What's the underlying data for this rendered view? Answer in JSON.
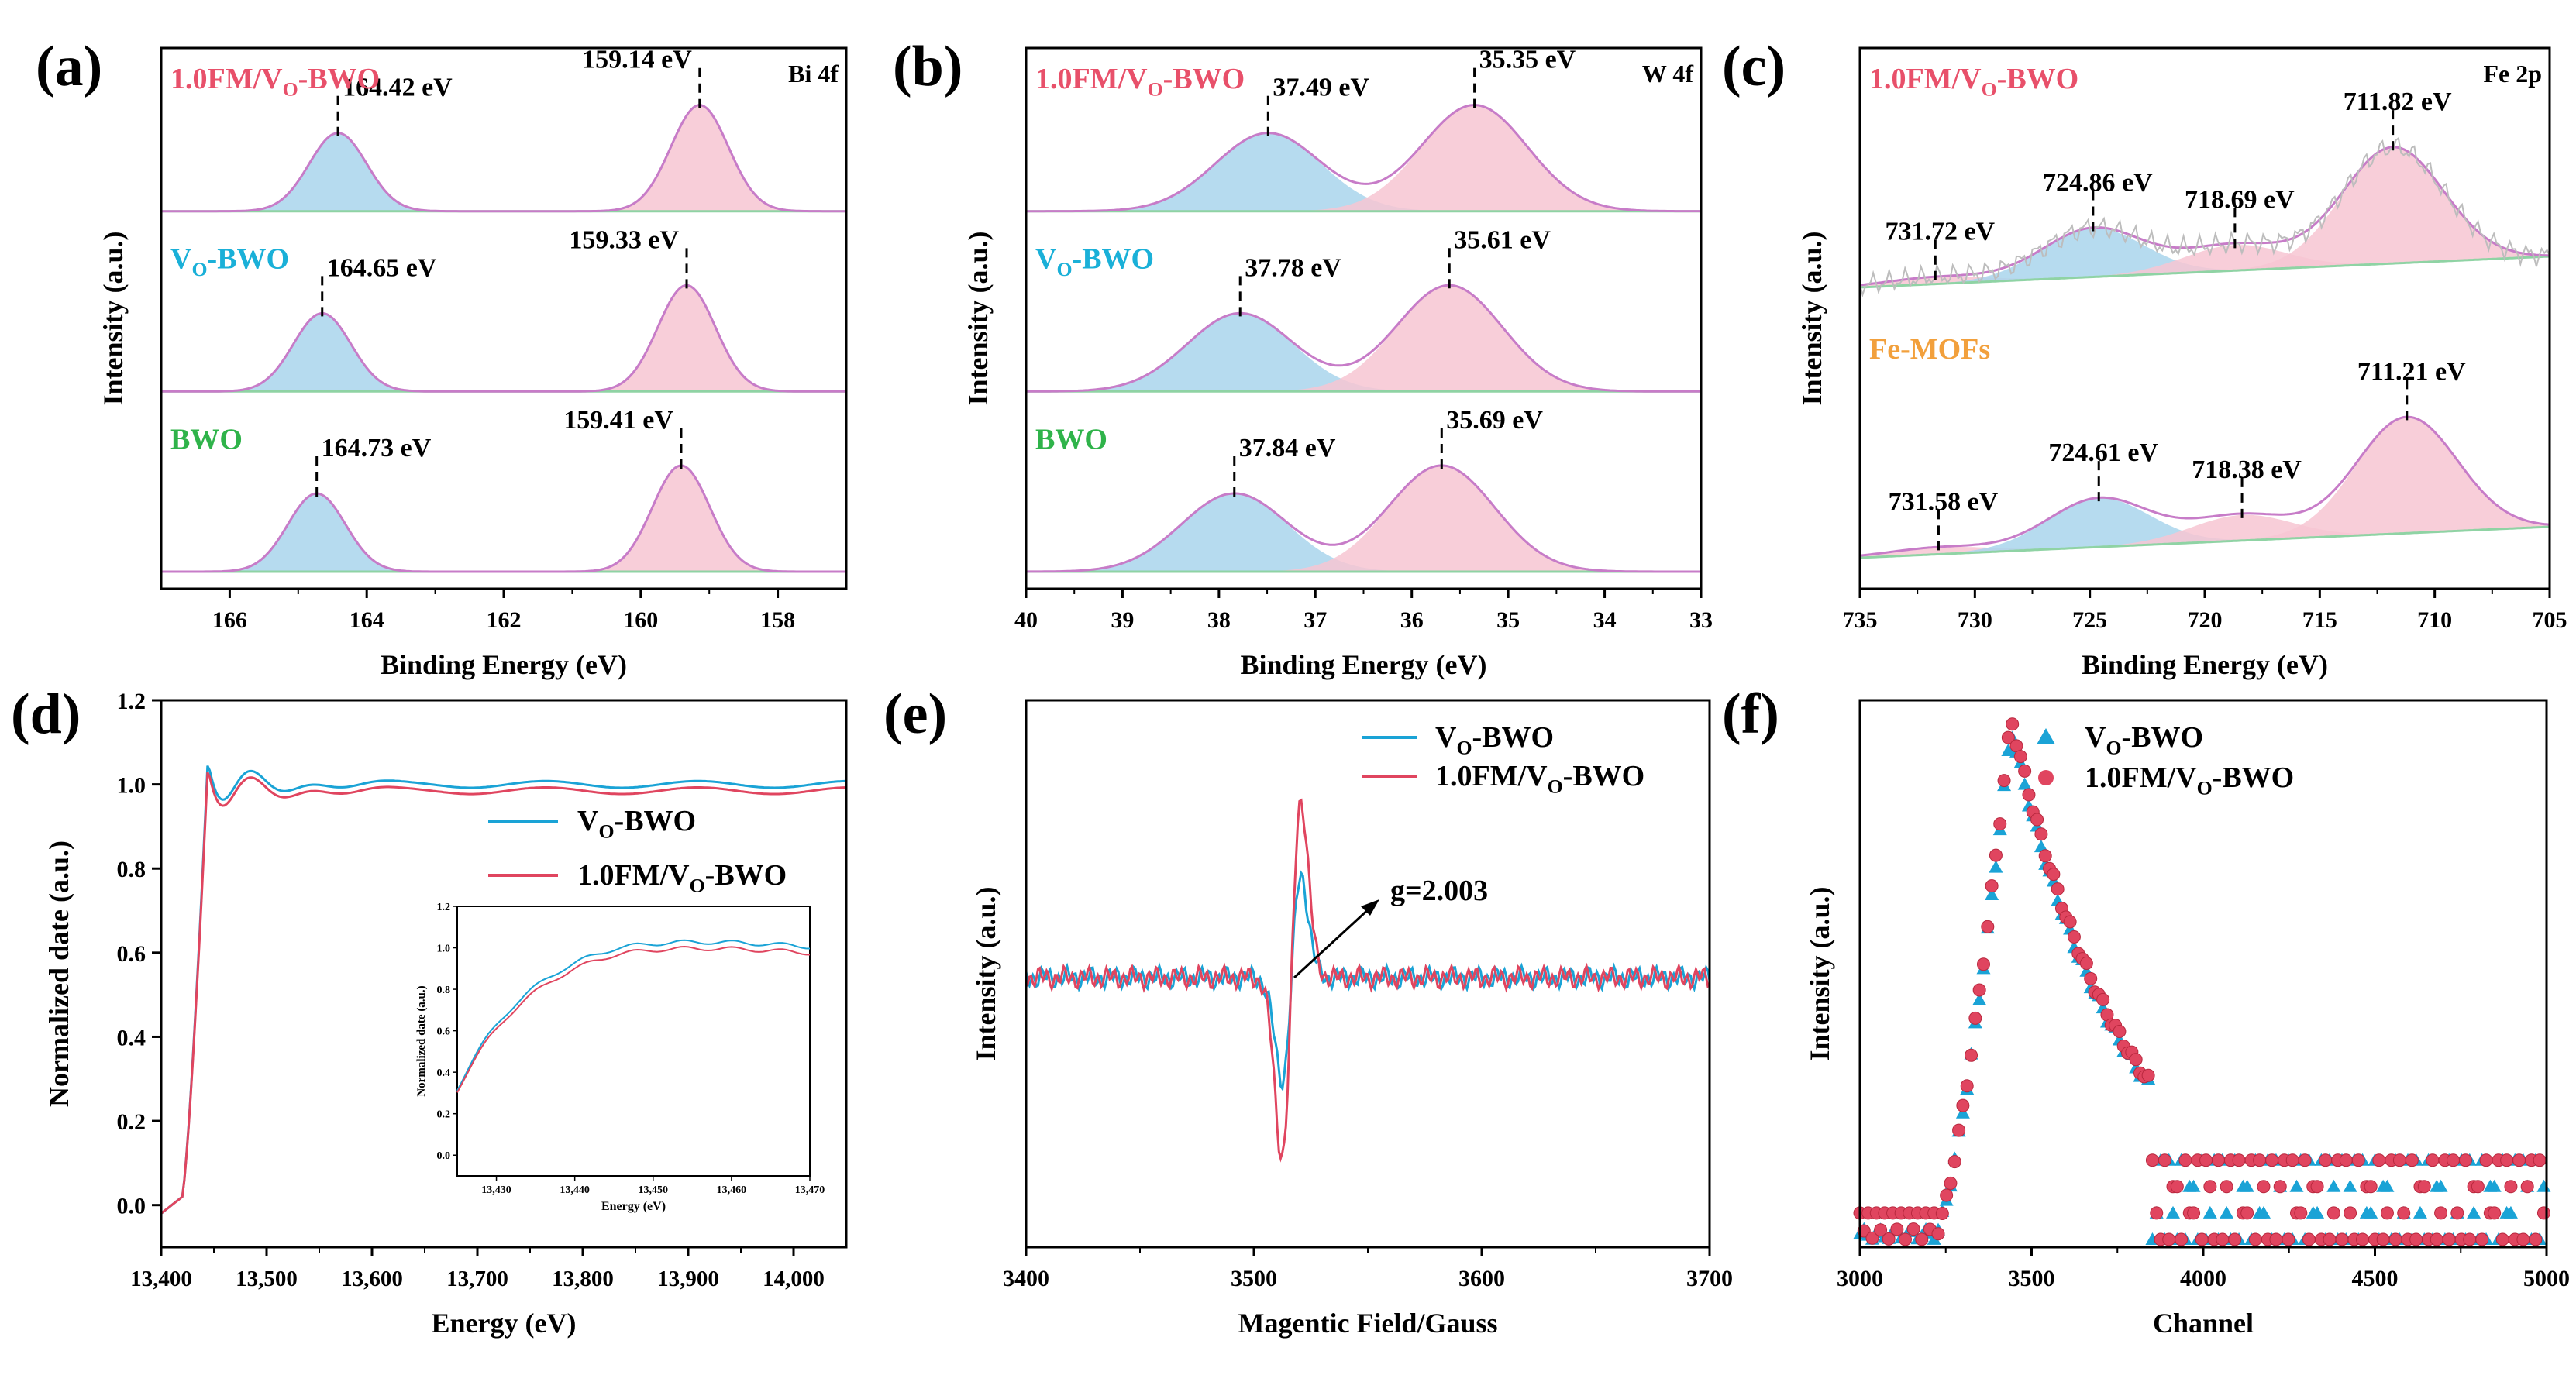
{
  "figure": {
    "panel_labels": [
      "(a)",
      "(b)",
      "(c)",
      "(d)",
      "(e)",
      "(f)"
    ]
  },
  "colors": {
    "pink_label": "#e8506a",
    "cyan_label": "#1ab0d8",
    "green_label": "#2fb34a",
    "orange_label": "#f2a03c",
    "fit_line": "#c77cc8",
    "fill_pink": "#f7c6d2",
    "fill_blue": "#a9d5ec",
    "baseline": "#8fd3a4",
    "line_blue": "#1aa3d6",
    "line_red": "#e0455f"
  },
  "chart_data": [
    {
      "id": "a",
      "type": "line",
      "title": "Bi 4f",
      "xlabel": "Binding Energy (eV)",
      "ylabel": "Intensity (a.u.)",
      "xlim": [
        167,
        157
      ],
      "xticks": [
        166,
        164,
        162,
        160,
        158
      ],
      "xtick_labels": [
        "166",
        "164",
        "162",
        "160",
        "158"
      ],
      "series": [
        {
          "name": "1.0FM/VO-BWO",
          "label_main": "1.0FM/V",
          "label_sub": "O",
          "label_tail": "-BWO",
          "color": "#e8506a",
          "peaks": [
            {
              "center": 164.42,
              "label": "164.42 eV"
            },
            {
              "center": 159.14,
              "label": "159.14 eV"
            }
          ]
        },
        {
          "name": "VO-BWO",
          "label_main": "V",
          "label_sub": "O",
          "label_tail": "-BWO",
          "color": "#1ab0d8",
          "peaks": [
            {
              "center": 164.65,
              "label": "164.65 eV"
            },
            {
              "center": 159.33,
              "label": "159.33 eV"
            }
          ]
        },
        {
          "name": "BWO",
          "label_main": "BWO",
          "label_sub": "",
          "label_tail": "",
          "color": "#2fb34a",
          "peaks": [
            {
              "center": 164.73,
              "label": "164.73 eV"
            },
            {
              "center": 159.41,
              "label": "159.41 eV"
            }
          ]
        }
      ]
    },
    {
      "id": "b",
      "type": "line",
      "title": "W 4f",
      "xlabel": "Binding Energy (eV)",
      "ylabel": "Intensity (a.u.)",
      "xlim": [
        40,
        33
      ],
      "xticks": [
        40,
        39,
        38,
        37,
        36,
        35,
        34,
        33
      ],
      "xtick_labels": [
        "40",
        "39",
        "38",
        "37",
        "36",
        "35",
        "34",
        "33"
      ],
      "series": [
        {
          "name": "1.0FM/VO-BWO",
          "label_main": "1.0FM/V",
          "label_sub": "O",
          "label_tail": "-BWO",
          "color": "#e8506a",
          "peaks": [
            {
              "center": 37.49,
              "label": "37.49 eV"
            },
            {
              "center": 35.35,
              "label": "35.35 eV"
            }
          ]
        },
        {
          "name": "VO-BWO",
          "label_main": "V",
          "label_sub": "O",
          "label_tail": "-BWO",
          "color": "#1ab0d8",
          "peaks": [
            {
              "center": 37.78,
              "label": "37.78 eV"
            },
            {
              "center": 35.61,
              "label": "35.61 eV"
            }
          ]
        },
        {
          "name": "BWO",
          "label_main": "BWO",
          "label_sub": "",
          "label_tail": "",
          "color": "#2fb34a",
          "peaks": [
            {
              "center": 37.84,
              "label": "37.84 eV"
            },
            {
              "center": 35.69,
              "label": "35.69 eV"
            }
          ]
        }
      ]
    },
    {
      "id": "c",
      "type": "line",
      "title": "Fe 2p",
      "xlabel": "Binding Energy (eV)",
      "ylabel": "Intensity (a.u.)",
      "xlim": [
        735,
        705
      ],
      "xticks": [
        735,
        730,
        725,
        720,
        715,
        710,
        705
      ],
      "xtick_labels": [
        "735",
        "730",
        "725",
        "720",
        "715",
        "710",
        "705"
      ],
      "series": [
        {
          "name": "1.0FM/VO-BWO",
          "label_main": "1.0FM/V",
          "label_sub": "O",
          "label_tail": "-BWO",
          "color": "#e8506a",
          "peaks": [
            {
              "center": 731.72,
              "label": "731.72 eV"
            },
            {
              "center": 724.86,
              "label": "724.86 eV"
            },
            {
              "center": 718.69,
              "label": "718.69 eV"
            },
            {
              "center": 711.82,
              "label": "711.82 eV"
            }
          ]
        },
        {
          "name": "Fe-MOFs",
          "label_main": "Fe-MOFs",
          "label_sub": "",
          "label_tail": "",
          "color": "#f2a03c",
          "peaks": [
            {
              "center": 731.58,
              "label": "731.58 eV"
            },
            {
              "center": 724.61,
              "label": "724.61 eV"
            },
            {
              "center": 718.38,
              "label": "718.38 eV"
            },
            {
              "center": 711.21,
              "label": "711.21 eV"
            }
          ]
        }
      ]
    },
    {
      "id": "d",
      "type": "line",
      "xlabel": "Energy (eV)",
      "ylabel": "Normalized date (a.u.)",
      "xlim": [
        13400,
        14050
      ],
      "ylim": [
        -0.1,
        1.2
      ],
      "xticks": [
        13400,
        13500,
        13600,
        13700,
        13800,
        13900,
        14000
      ],
      "xtick_labels": [
        "13,400",
        "13,500",
        "13,600",
        "13,700",
        "13,800",
        "13,900",
        "14,000"
      ],
      "yticks": [
        0.0,
        0.2,
        0.4,
        0.6,
        0.8,
        1.0,
        1.2
      ],
      "ytick_labels": [
        "0.0",
        "0.2",
        "0.4",
        "0.6",
        "0.8",
        "1.0",
        "1.2"
      ],
      "series": [
        {
          "name": "VO-BWO",
          "label_main": "V",
          "label_sub": "O",
          "label_tail": "-BWO",
          "color": "#1aa3d6"
        },
        {
          "name": "1.0FM/VO-BWO",
          "label_main": "1.0FM/V",
          "label_sub": "O",
          "label_tail": "-BWO",
          "color": "#e0455f"
        }
      ],
      "inset": {
        "xlabel": "Energy (eV)",
        "ylabel": "Normalized date (a.u.)",
        "xlim": [
          13425,
          13470
        ],
        "ylim": [
          -0.1,
          1.2
        ],
        "xticks": [
          13430,
          13440,
          13450,
          13460,
          13470
        ],
        "xtick_labels": [
          "13,430",
          "13,440",
          "13,450",
          "13,460",
          "13,470"
        ],
        "yticks": [
          0.0,
          0.2,
          0.4,
          0.6,
          0.8,
          1.0,
          1.2
        ],
        "ytick_labels": [
          "0.0",
          "0.2",
          "0.4",
          "0.6",
          "0.8",
          "1.0",
          "1.2"
        ]
      }
    },
    {
      "id": "e",
      "type": "line",
      "xlabel": "Magentic Field/Gauss",
      "ylabel": "Intensity (a.u.)",
      "xlim": [
        3400,
        3700
      ],
      "xticks": [
        3400,
        3500,
        3600,
        3700
      ],
      "xtick_labels": [
        "3400",
        "3500",
        "3600",
        "3700"
      ],
      "annotation": "g=2.003",
      "series": [
        {
          "name": "VO-BWO",
          "label_main": "V",
          "label_sub": "O",
          "label_tail": "-BWO",
          "color": "#1aa3d6"
        },
        {
          "name": "1.0FM/VO-BWO",
          "label_main": "1.0FM/V",
          "label_sub": "O",
          "label_tail": "-BWO",
          "color": "#e0455f"
        }
      ]
    },
    {
      "id": "f",
      "type": "scatter",
      "xlabel": "Channel",
      "ylabel": "Intensity (a.u.)",
      "xlim": [
        3000,
        5000
      ],
      "xticks": [
        3000,
        3500,
        4000,
        4500,
        5000
      ],
      "xtick_labels": [
        "3000",
        "3500",
        "4000",
        "4500",
        "5000"
      ],
      "series": [
        {
          "name": "VO-BWO",
          "label_main": "V",
          "label_sub": "O",
          "label_tail": "-BWO",
          "color": "#1aa3d6",
          "marker": "triangle"
        },
        {
          "name": "1.0FM/VO-BWO",
          "label_main": "1.0FM/V",
          "label_sub": "O",
          "label_tail": "-BWO",
          "color": "#e0455f",
          "marker": "circle"
        }
      ]
    }
  ]
}
